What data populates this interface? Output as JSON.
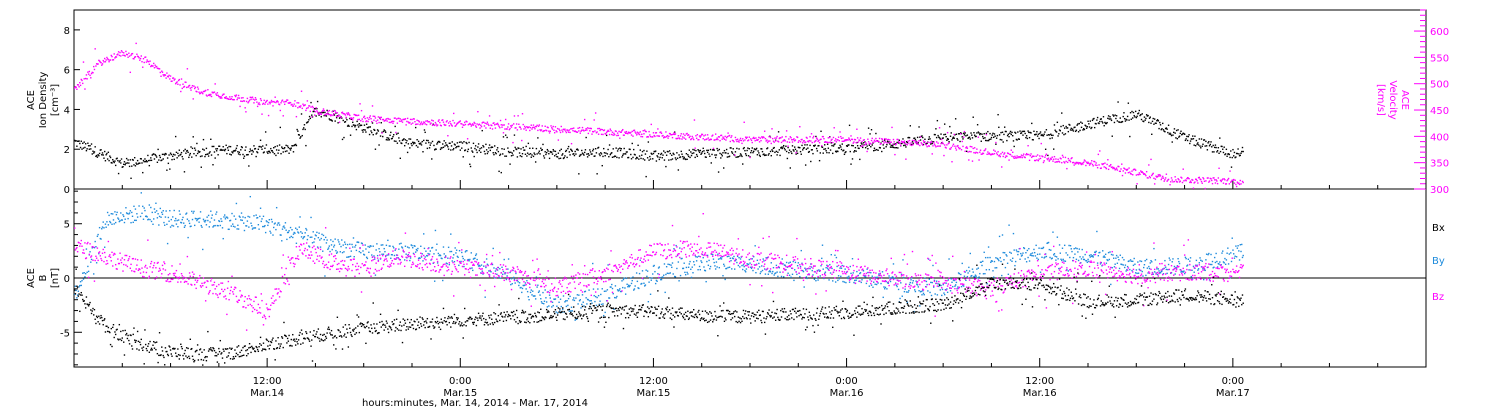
{
  "chart_data": [
    {
      "type": "scatter",
      "panel": "top",
      "ylabel_left": [
        "ACE",
        "Ion Density",
        "[cm⁻³]"
      ],
      "ylabel_right": [
        "ACE",
        "Velocity",
        "[km/s]"
      ],
      "ylim_left": [
        0,
        9
      ],
      "ylim_right": [
        300,
        640
      ],
      "yticks_left": [
        0,
        2,
        4,
        6,
        8
      ],
      "yticks_right": [
        300,
        350,
        400,
        450,
        500,
        550,
        600
      ],
      "series": [
        {
          "name": "Ion Density",
          "color": "#000000",
          "axis": "left",
          "x": [
            0,
            3,
            6,
            9,
            12,
            13.5,
            15,
            18,
            21,
            24,
            27,
            30,
            33,
            36,
            39,
            42,
            45,
            48,
            51,
            54,
            57,
            60,
            63,
            66,
            69,
            72,
            72.6
          ],
          "y": [
            2.4,
            1.3,
            1.7,
            2.0,
            2.0,
            2.0,
            4.0,
            3.1,
            2.3,
            2.2,
            1.9,
            1.8,
            1.9,
            1.7,
            1.8,
            1.9,
            2.0,
            2.1,
            2.3,
            2.6,
            2.7,
            2.7,
            3.3,
            3.8,
            2.6,
            1.8,
            1.9
          ]
        },
        {
          "name": "Velocity",
          "color": "#ff00ff",
          "axis": "right",
          "x": [
            0,
            1.5,
            3,
            4.5,
            6,
            8,
            10,
            12,
            13.5,
            15,
            18,
            21,
            24,
            27,
            30,
            33,
            36,
            39,
            42,
            45,
            48,
            51,
            54,
            57,
            60,
            62,
            64,
            66,
            68,
            70,
            72.6
          ],
          "y": [
            490,
            540,
            560,
            545,
            510,
            485,
            475,
            465,
            465,
            450,
            435,
            430,
            425,
            420,
            415,
            410,
            405,
            400,
            395,
            395,
            395,
            390,
            385,
            370,
            360,
            355,
            345,
            332,
            320,
            318,
            315
          ]
        }
      ]
    },
    {
      "type": "scatter",
      "panel": "bottom",
      "ylabel": [
        "ACE",
        "B",
        "[nT]"
      ],
      "ylim": [
        -8.2,
        8.2
      ],
      "yticks": [
        -5,
        0,
        5
      ],
      "zero_line": true,
      "series": [
        {
          "name": "Bx",
          "color": "#000000",
          "x": [
            0,
            2,
            4,
            6,
            8,
            10,
            12,
            14,
            16,
            18,
            20,
            24,
            27,
            30,
            33,
            36,
            39,
            42,
            45,
            48,
            51,
            54,
            57,
            60,
            63,
            66,
            69,
            72.6
          ],
          "y": [
            -1.0,
            -4.5,
            -6.0,
            -6.8,
            -7.0,
            -6.8,
            -6.0,
            -5.5,
            -5.0,
            -4.6,
            -4.3,
            -3.8,
            -3.6,
            -3.3,
            -3.0,
            -3.0,
            -3.5,
            -3.5,
            -3.3,
            -3.1,
            -2.7,
            -2.4,
            -0.4,
            -0.6,
            -2.1,
            -2.0,
            -1.5,
            -2.1
          ]
        },
        {
          "name": "By",
          "color": "#1e8bdc",
          "x": [
            0,
            2,
            4,
            6,
            8,
            10,
            12,
            14,
            16,
            18,
            20,
            24,
            27,
            30,
            33,
            36,
            39,
            42,
            45,
            48,
            51,
            54,
            57,
            60,
            63,
            66,
            69,
            72.6
          ],
          "y": [
            -1.5,
            5.5,
            6.0,
            5.5,
            5.5,
            5.3,
            5.0,
            4.0,
            3.0,
            2.5,
            2.5,
            2.0,
            0.2,
            -2.5,
            -1.5,
            0.5,
            1.5,
            1.4,
            0.7,
            0.4,
            -0.3,
            -1.0,
            1.5,
            2.6,
            2.2,
            1.0,
            1.2,
            2.4
          ]
        },
        {
          "name": "Bz",
          "color": "#ff00ff",
          "x": [
            0,
            2,
            4,
            6,
            8,
            10,
            12,
            14,
            16,
            18,
            20,
            24,
            27,
            30,
            33,
            36,
            39,
            42,
            45,
            48,
            51,
            54,
            57,
            60,
            63,
            66,
            69,
            72.6
          ],
          "y": [
            3.0,
            2.0,
            1.0,
            0.5,
            -0.5,
            -1.5,
            -3.0,
            2.8,
            1.5,
            1.0,
            2.0,
            1.0,
            0.5,
            -0.8,
            0.5,
            2.5,
            2.8,
            1.8,
            1.2,
            0.6,
            0.0,
            -0.5,
            -0.9,
            0.5,
            1.0,
            0.3,
            0.6,
            0.5
          ]
        }
      ],
      "legend": [
        "Bx",
        "By",
        "Bz"
      ]
    }
  ],
  "x_axis": {
    "range_hours": [
      0,
      84
    ],
    "ticks": [
      {
        "hour": 12,
        "time": "12:00",
        "date": "Mar.14"
      },
      {
        "hour": 24,
        "time": "0:00",
        "date": "Mar.15"
      },
      {
        "hour": 36,
        "time": "12:00",
        "date": "Mar.15"
      },
      {
        "hour": 48,
        "time": "0:00",
        "date": "Mar.16"
      },
      {
        "hour": 60,
        "time": "12:00",
        "date": "Mar.16"
      },
      {
        "hour": 72,
        "time": "0:00",
        "date": "Mar.17"
      }
    ],
    "title": "hours:minutes, Mar. 14, 2014 - Mar. 17, 2014"
  }
}
